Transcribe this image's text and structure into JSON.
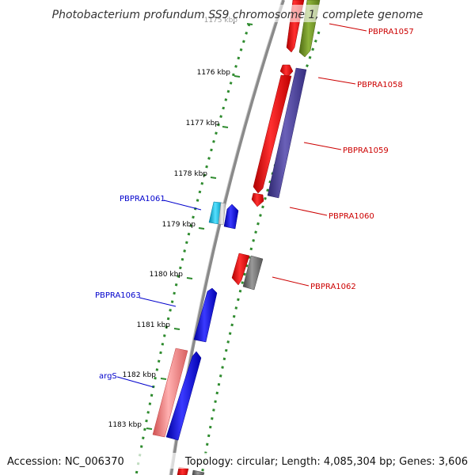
{
  "title": "Photobacterium profundum SS9 chromosome 1, complete genome",
  "footer": {
    "accession": "Accession: NC_006370",
    "topology": "Topology: circular; Length: 4,085,304 bp; Genes: 3,606"
  },
  "ticks": [
    "1175 kbp",
    "1176 kbp",
    "1177 kbp",
    "1178 kbp",
    "1179 kbp",
    "1180 kbp",
    "1181 kbp",
    "1182 kbp",
    "1183 kbp"
  ],
  "labels": {
    "pbpra1057": "PBPRA1057",
    "pbpra1058": "PBPRA1058",
    "pbpra1059": "PBPRA1059",
    "pbpra1060": "PBPRA1060",
    "pbpra1061": "PBPRA1061",
    "pbpra1062": "PBPRA1062",
    "pbpra1063": "PBPRA1063",
    "args": "argS"
  },
  "colors": {
    "backbone": "#8a8a8a",
    "tick_ring": "#2e8b2e",
    "red_gene": "#ff0000",
    "olive_gene": "#6b8e23",
    "purple_gene": "#483d8b",
    "gray_gene": "#696969",
    "blue_gene": "#0000ff",
    "cyan_gene": "#00bcd4",
    "pink_gene": "#f08080",
    "red_label": "#cc0000",
    "blue_label": "#0000cc"
  }
}
